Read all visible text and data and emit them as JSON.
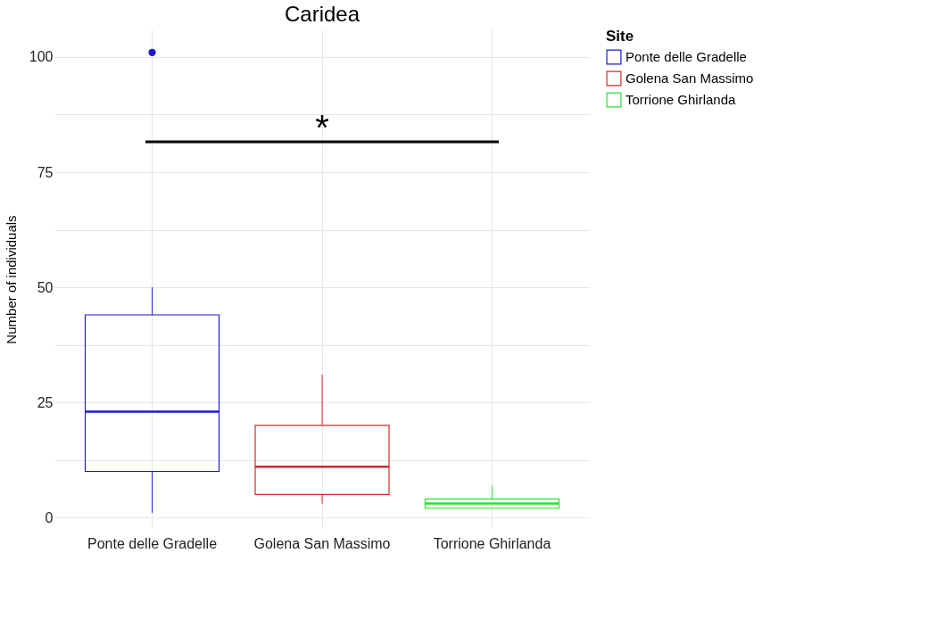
{
  "chart_data": {
    "type": "box",
    "title": "Caridea",
    "ylabel": "Number of individuals",
    "legend_title": "Site",
    "categories": [
      "Ponte delle Gradelle",
      "Golena San Massimo",
      "Torrione Ghirlanda"
    ],
    "series": [
      {
        "name": "Ponte delle Gradelle",
        "color": "#1a1ad0",
        "boxes": [
          {
            "low": 1,
            "q1": 10,
            "median": 23,
            "q3": 44,
            "high": 50,
            "outliers": [
              101
            ]
          },
          null,
          null
        ]
      },
      {
        "name": "Golena San Massimo",
        "color": "#d42a2a",
        "boxes": [
          null,
          {
            "low": 3,
            "q1": 5,
            "median": 11,
            "q3": 20,
            "high": 31
          },
          null
        ]
      },
      {
        "name": "Torrione Ghirlanda",
        "color": "#2ee02e",
        "boxes": [
          null,
          null,
          {
            "low": 2,
            "q1": 2,
            "median": 3,
            "q3": 4,
            "high": 7
          }
        ]
      }
    ],
    "ylim": [
      -2.5,
      106
    ],
    "yticks": [
      0,
      {
        "value": 12.5,
        "label": null
      },
      25,
      {
        "value": 37.5,
        "label": null
      },
      50,
      {
        "value": 62.5,
        "label": null
      },
      75,
      {
        "value": 87.5,
        "label": null
      },
      100
    ],
    "annotations": [
      "*"
    ],
    "grid": true,
    "legend": "right"
  }
}
